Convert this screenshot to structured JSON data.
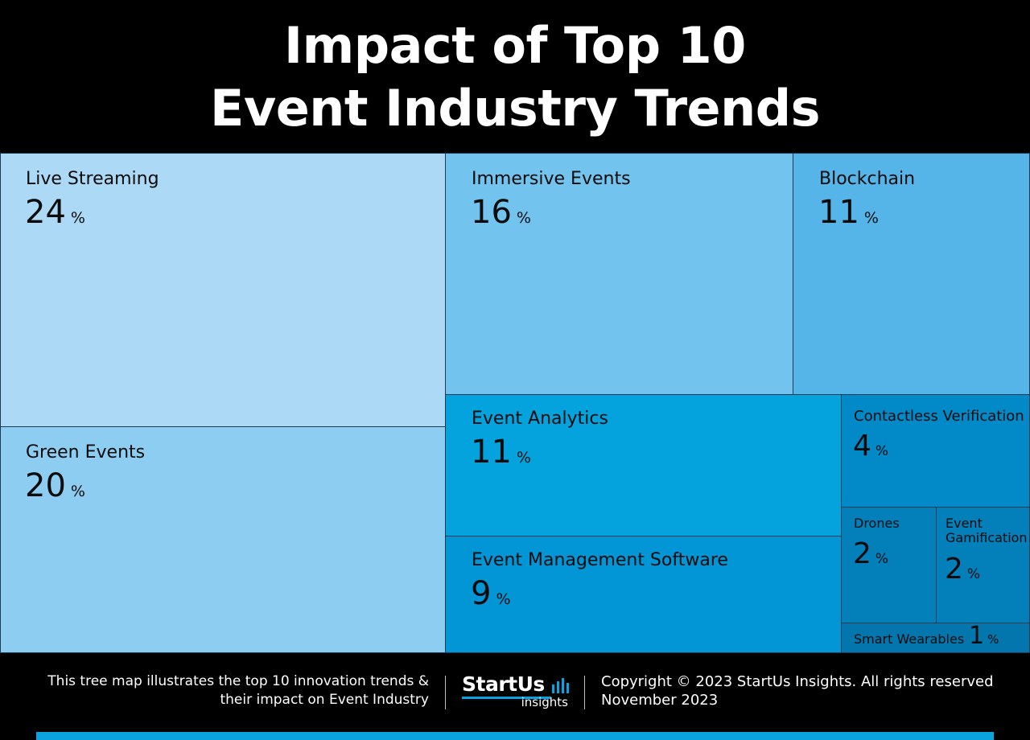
{
  "title": {
    "line1": "Impact of Top 10",
    "line2": "Event Industry Trends"
  },
  "chart_data": {
    "type": "treemap",
    "unit": "%",
    "items": [
      {
        "label": "Live Streaming",
        "value": 24,
        "color": "#acd9f6"
      },
      {
        "label": "Green Events",
        "value": 20,
        "color": "#8dcdf1"
      },
      {
        "label": "Immersive Events",
        "value": 16,
        "color": "#72c3ee"
      },
      {
        "label": "Blockchain",
        "value": 11,
        "color": "#55b4e8"
      },
      {
        "label": "Event Analytics",
        "value": 11,
        "color": "#05a3dd"
      },
      {
        "label": "Event Management Software",
        "value": 9,
        "color": "#0296d6"
      },
      {
        "label": "Contactless Verification",
        "value": 4,
        "color": "#0289c7"
      },
      {
        "label": "Drones",
        "value": 2,
        "color": "#037fba"
      },
      {
        "label": "Event\nGamification",
        "value": 2,
        "color": "#037fba"
      },
      {
        "label": "Smart Wearables",
        "value": 1,
        "color": "#0377ad"
      }
    ]
  },
  "footer": {
    "description_line1": "This tree map illustrates the top 10 innovation trends &",
    "description_line2": "their impact on Event Industry",
    "logo_name": "StartUs",
    "logo_sub": "insights",
    "copyright": "Copyright © 2023 StartUs Insights. All rights reserved",
    "date": "November 2023"
  },
  "colors": {
    "background": "#000000",
    "accent_bar": "#0aa3df"
  }
}
